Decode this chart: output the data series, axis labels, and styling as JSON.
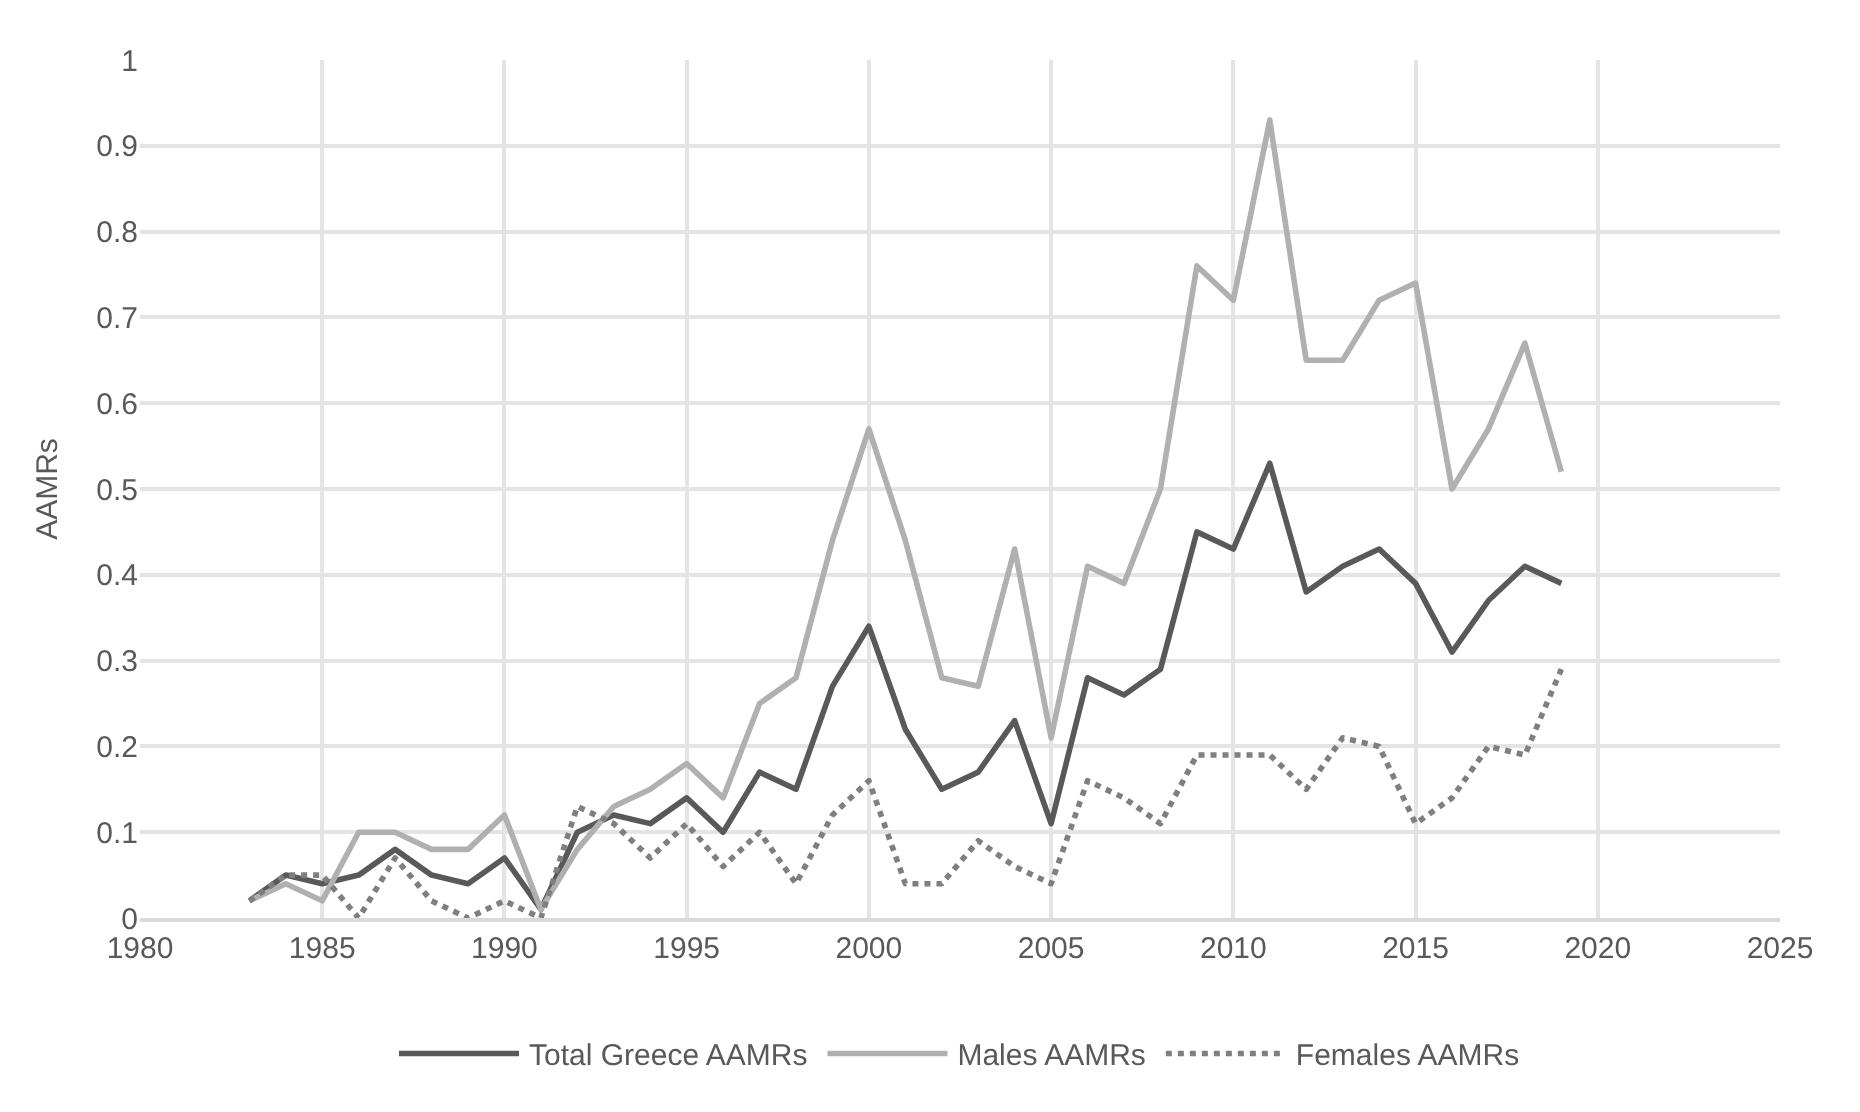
{
  "chart_data": {
    "type": "line",
    "ylabel": "AAMRs",
    "x": [
      1983,
      1984,
      1985,
      1986,
      1987,
      1988,
      1989,
      1990,
      1991,
      1992,
      1993,
      1994,
      1995,
      1996,
      1997,
      1998,
      1999,
      2000,
      2001,
      2002,
      2003,
      2004,
      2005,
      2006,
      2007,
      2008,
      2009,
      2010,
      2011,
      2012,
      2013,
      2014,
      2015,
      2016,
      2017,
      2018,
      2019
    ],
    "series": [
      {
        "name": "Total Greece AAMRs",
        "color": "#595959",
        "line_style": "solid",
        "values": [
          0.02,
          0.05,
          0.04,
          0.05,
          0.08,
          0.05,
          0.04,
          0.07,
          0.01,
          0.1,
          0.12,
          0.11,
          0.14,
          0.1,
          0.17,
          0.15,
          0.27,
          0.34,
          0.22,
          0.15,
          0.17,
          0.23,
          0.11,
          0.28,
          0.26,
          0.29,
          0.45,
          0.43,
          0.53,
          0.38,
          0.41,
          0.43,
          0.39,
          0.31,
          0.37,
          0.41,
          0.39
        ]
      },
      {
        "name": "Males AAMRs",
        "color": "#b0b0b0",
        "line_style": "solid",
        "values": [
          0.02,
          0.04,
          0.02,
          0.1,
          0.1,
          0.08,
          0.08,
          0.12,
          0.01,
          0.08,
          0.13,
          0.15,
          0.18,
          0.14,
          0.25,
          0.28,
          0.44,
          0.57,
          0.44,
          0.28,
          0.27,
          0.43,
          0.21,
          0.41,
          0.39,
          0.5,
          0.76,
          0.72,
          0.93,
          0.65,
          0.65,
          0.72,
          0.74,
          0.5,
          0.57,
          0.67,
          0.52
        ]
      },
      {
        "name": "Females AAMRs",
        "color": "#7f7f7f",
        "line_style": "dotted",
        "values": [
          0.02,
          0.05,
          0.05,
          0.0,
          0.07,
          0.02,
          0.0,
          0.02,
          0.0,
          0.13,
          0.11,
          0.07,
          0.11,
          0.06,
          0.1,
          0.04,
          0.12,
          0.16,
          0.04,
          0.04,
          0.09,
          0.06,
          0.04,
          0.16,
          0.14,
          0.11,
          0.19,
          0.19,
          0.19,
          0.15,
          0.21,
          0.2,
          0.11,
          0.14,
          0.2,
          0.19,
          0.29
        ]
      }
    ],
    "xlim": [
      1980,
      2025
    ],
    "xticks": [
      1980,
      1985,
      1990,
      1995,
      2000,
      2005,
      2010,
      2015,
      2020,
      2025
    ],
    "ylim": [
      0,
      1
    ],
    "yticks": [
      0,
      0.1,
      0.2,
      0.3,
      0.4,
      0.5,
      0.6,
      0.7,
      0.8,
      0.9,
      1
    ],
    "grid": true,
    "legend": "bottom",
    "marker": "none"
  }
}
